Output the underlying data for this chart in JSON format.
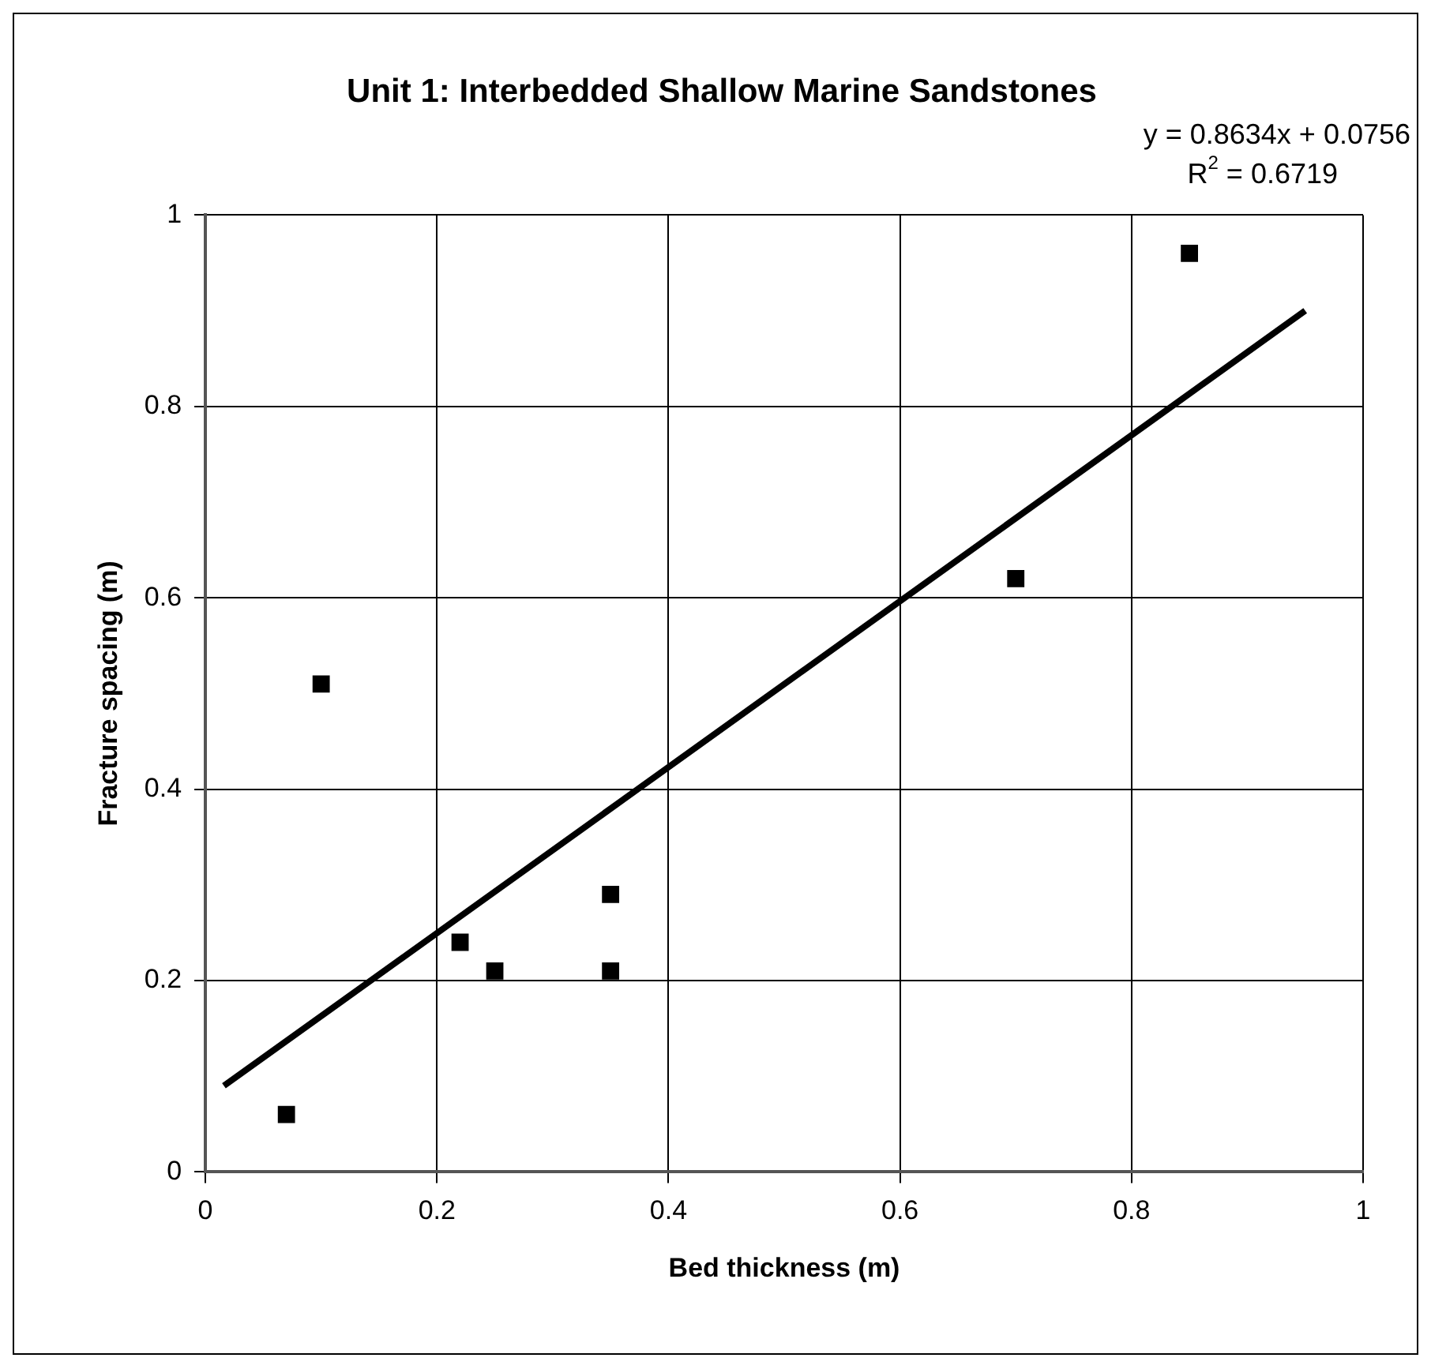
{
  "chart_data": {
    "type": "scatter",
    "title": "Unit 1: Interbedded Shallow Marine Sandstones",
    "xlabel": "Bed thickness (m)",
    "ylabel": "Fracture spacing (m)",
    "annotations": [
      "y = 0.8634x + 0.0756",
      "R$^{2}$ = 0.6719"
    ],
    "x": [
      0.07,
      0.1,
      0.22,
      0.25,
      0.35,
      0.35,
      0.7,
      0.85
    ],
    "series": [
      {
        "type": "scatter",
        "color": "#000000",
        "values": [
          0.06,
          0.51,
          0.24,
          0.21,
          0.29,
          0.21,
          0.62,
          0.96
        ]
      },
      {
        "type": "line",
        "color": "#000000",
        "x": [
          0.016,
          0.95
        ],
        "values": [
          0.09,
          0.9
        ],
        "marker": "none"
      }
    ],
    "xlim": [
      0,
      1
    ],
    "ylim": [
      0,
      1
    ],
    "xticks": [
      0,
      0.2,
      0.4,
      0.6,
      0.8,
      1
    ],
    "yticks": [
      0,
      0.2,
      0.4,
      0.6,
      0.8,
      1
    ],
    "grid": true,
    "marker": "square"
  }
}
